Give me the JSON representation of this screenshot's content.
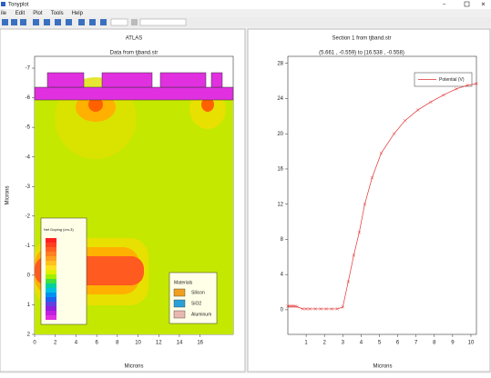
{
  "window": {
    "title": "Tonyplot"
  },
  "menu": [
    "ile",
    "Edit",
    "Plot",
    "Tools",
    "Help"
  ],
  "left_plot": {
    "title": "ATLAS",
    "subtitle": "Data from tjband.str",
    "xlabel": "Microns",
    "ylabel": "Microns",
    "xlim": [
      0,
      19.2
    ],
    "ylim": [
      -7.4,
      2
    ],
    "xticks": [
      0,
      2,
      4,
      6,
      8,
      10,
      12,
      14,
      16
    ],
    "yticks": [
      -7,
      -6,
      -5,
      -4,
      -3,
      -2,
      -1,
      0,
      1,
      2
    ],
    "doping_legend": "Net Doping (cm-3)",
    "materials": {
      "title": "Materials",
      "items": [
        {
          "name": "Silicon",
          "color": "#f0a020"
        },
        {
          "name": "SiO2",
          "color": "#2aa0d8"
        },
        {
          "name": "Aluminum",
          "color": "#e8b8b0"
        }
      ]
    }
  },
  "chart_data": {
    "type": "line",
    "title": "Section 1 from tjband.str",
    "subtitle": "(5.661 , -0.559) to (16.538 , -0.558)",
    "xlabel": "Microns",
    "x": [
      0,
      0.1,
      0.2,
      0.3,
      0.4,
      0.5,
      0.8,
      1.0,
      1.2,
      1.5,
      1.8,
      2.1,
      2.4,
      2.7,
      3.0,
      3.3,
      3.6,
      3.9,
      4.2,
      4.6,
      5.1,
      5.8,
      6.4,
      7.1,
      7.8,
      8.5,
      9.2,
      9.8,
      10.3
    ],
    "series": [
      {
        "name": "Potential (V)",
        "color": "#e03030",
        "values": [
          0.4,
          0.4,
          0.4,
          0.4,
          0.4,
          0.35,
          0.1,
          0.1,
          0.1,
          0.1,
          0.1,
          0.1,
          0.1,
          0.1,
          0.3,
          3.2,
          6.2,
          8.8,
          12,
          15,
          17.8,
          20,
          21.5,
          22.7,
          23.6,
          24.4,
          25.1,
          25.5,
          25.7
        ]
      }
    ],
    "xlim": [
      0,
      10.3
    ],
    "ylim": [
      -2.8,
      28.8
    ],
    "xticks": [
      1,
      2,
      3,
      4,
      5,
      6,
      7,
      8,
      9,
      10
    ],
    "yticks": [
      0,
      4,
      8,
      12,
      16,
      20,
      24,
      28
    ]
  }
}
